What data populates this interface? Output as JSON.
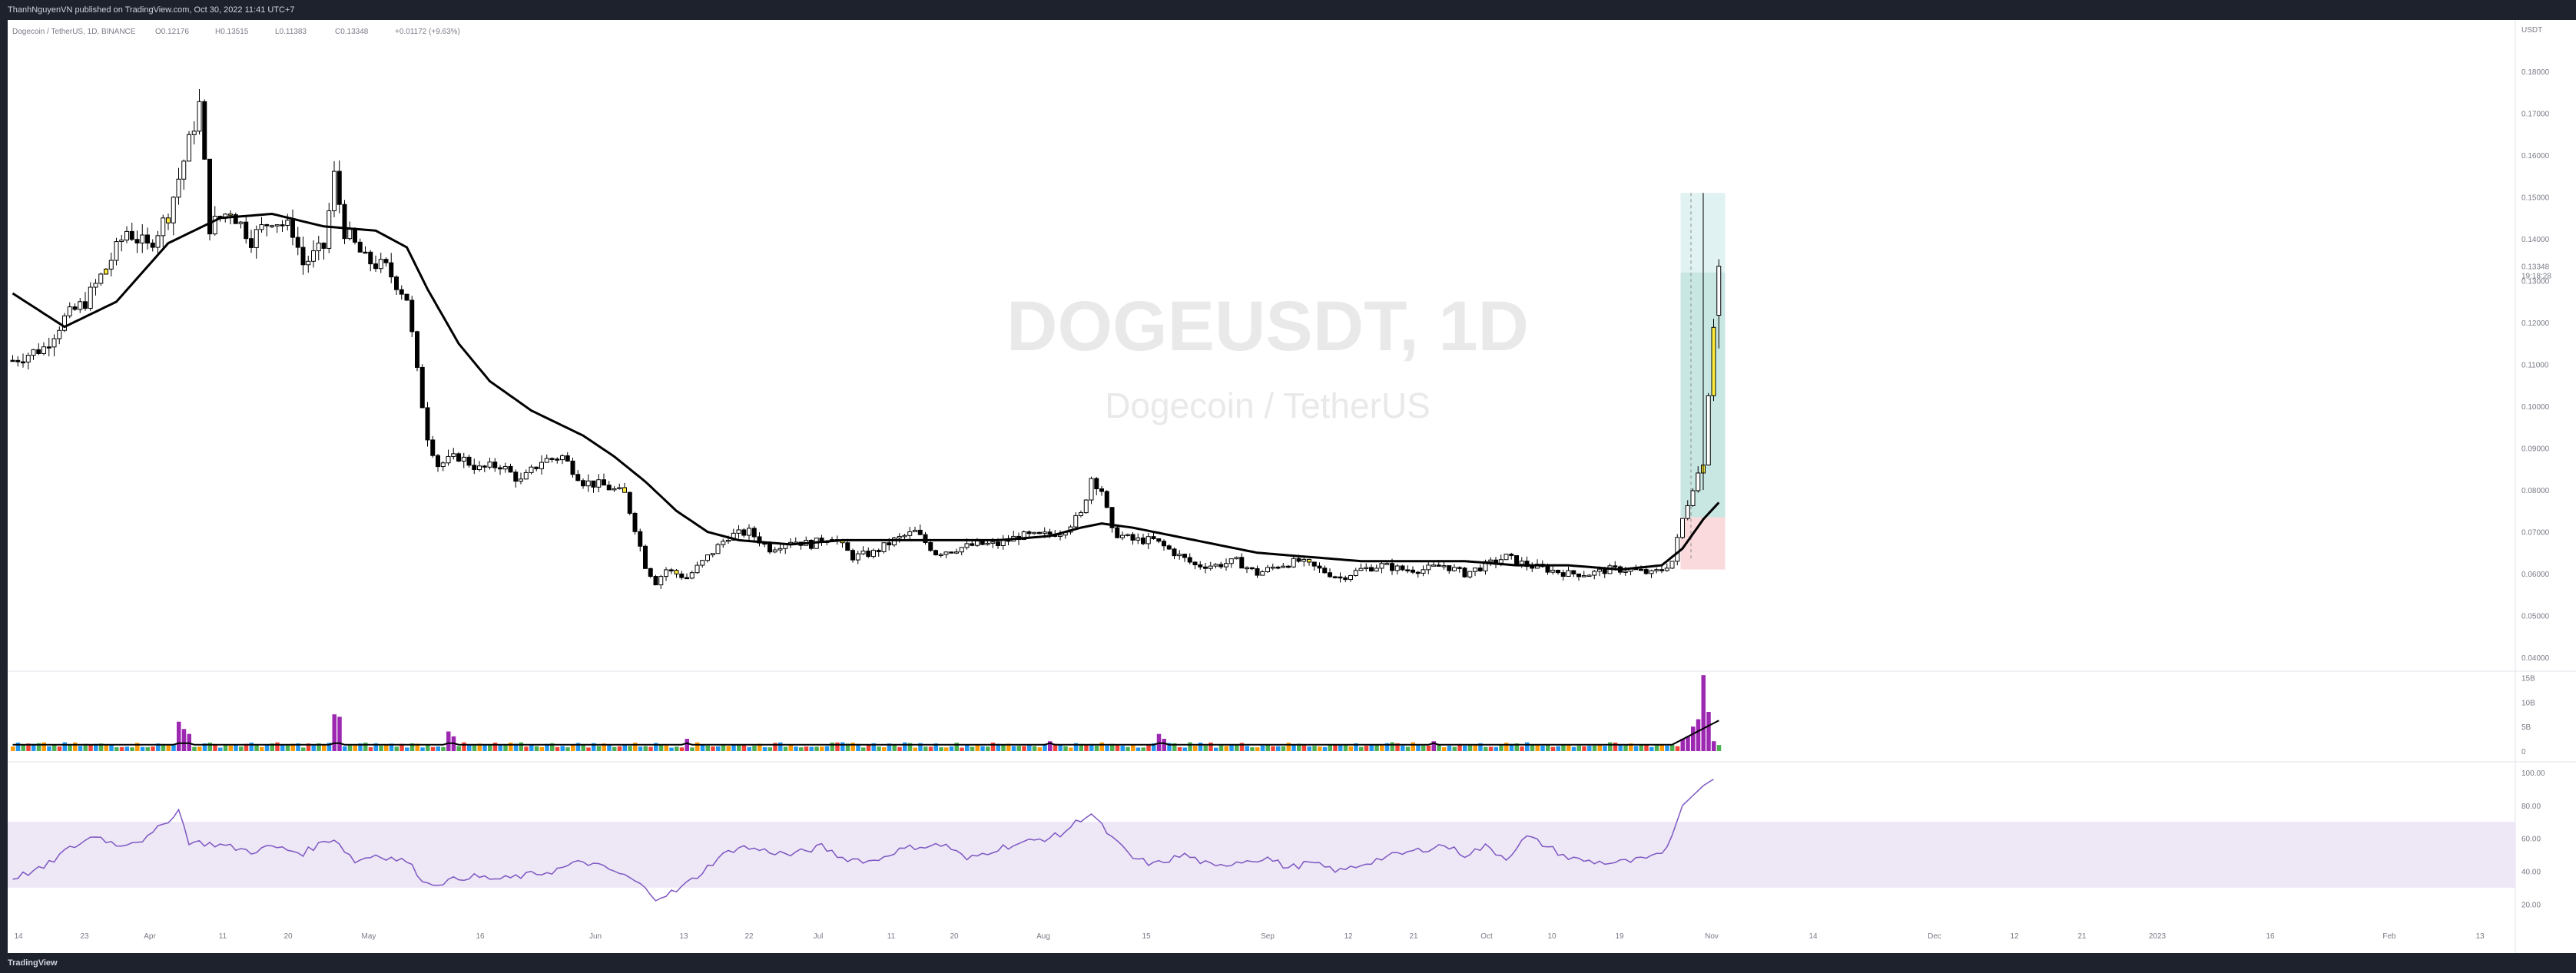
{
  "header": {
    "publish_line": "ThanhNguyenVN published on TradingView.com, Oct 30, 2022 11:41 UTC+7"
  },
  "footer": {
    "logo_text": "TradingView"
  },
  "legend": {
    "symbol": "Dogecoin / TetherUS, 1D, BINANCE",
    "open": "O0.12176",
    "high": "H0.13515",
    "low": "L0.11383",
    "close": "C0.13348",
    "change": "+0.01172 (+9.63%)"
  },
  "watermark": {
    "ticker": "DOGEUSDT, 1D",
    "name": "Dogecoin / TetherUS"
  },
  "colors": {
    "up": "#ffffff",
    "down": "#000000",
    "highlight": "#ffeb3b",
    "ma": "#000000",
    "rsi": "#7e57c2",
    "rsi_band": "#ede7f6",
    "target": "#c8e6e2",
    "target_light": "#e0f2f1",
    "stop": "#fadadd"
  },
  "chart_data": [
    {
      "type": "candlestick",
      "title": "DOGEUSDT, 1D",
      "price_axis_unit": "USDT",
      "y_ticks": [
        "0.18000",
        "0.17000",
        "0.16000",
        "0.15000",
        "0.14000",
        "0.13000",
        "0.12000",
        "0.11000",
        "0.10000",
        "0.09000",
        "0.08000",
        "0.07000",
        "0.06000",
        "0.05000",
        "0.04000"
      ],
      "ylim": [
        0.04,
        0.185
      ],
      "x_ticks": [
        "14",
        "23",
        "Apr",
        "11",
        "20",
        "May",
        "16",
        "Jun",
        "13",
        "22",
        "Jul",
        "11",
        "20",
        "Aug",
        "15",
        "Sep",
        "12",
        "21",
        "Oct",
        "10",
        "19",
        "Nov",
        "14",
        "Dec",
        "12",
        "21",
        "2023",
        "16",
        "Feb",
        "13"
      ],
      "last_price": "0.13348",
      "countdown": "19:18:28",
      "price_path": [
        [
          0,
          0.111
        ],
        [
          6,
          0.114
        ],
        [
          10,
          0.121
        ],
        [
          14,
          0.125
        ],
        [
          18,
          0.133
        ],
        [
          22,
          0.142
        ],
        [
          26,
          0.138
        ],
        [
          30,
          0.146
        ],
        [
          34,
          0.163
        ],
        [
          36,
          0.172
        ],
        [
          38,
          0.143
        ],
        [
          42,
          0.147
        ],
        [
          46,
          0.14
        ],
        [
          50,
          0.145
        ],
        [
          54,
          0.142
        ],
        [
          56,
          0.134
        ],
        [
          60,
          0.138
        ],
        [
          62,
          0.155
        ],
        [
          64,
          0.142
        ],
        [
          68,
          0.135
        ],
        [
          72,
          0.133
        ],
        [
          76,
          0.126
        ],
        [
          78,
          0.108
        ],
        [
          80,
          0.093
        ],
        [
          82,
          0.086
        ],
        [
          86,
          0.088
        ],
        [
          90,
          0.085
        ],
        [
          94,
          0.086
        ],
        [
          98,
          0.082
        ],
        [
          102,
          0.087
        ],
        [
          106,
          0.088
        ],
        [
          110,
          0.082
        ],
        [
          114,
          0.081
        ],
        [
          118,
          0.079
        ],
        [
          120,
          0.071
        ],
        [
          122,
          0.062
        ],
        [
          124,
          0.058
        ],
        [
          126,
          0.061
        ],
        [
          130,
          0.059
        ],
        [
          134,
          0.064
        ],
        [
          138,
          0.069
        ],
        [
          142,
          0.07
        ],
        [
          146,
          0.066
        ],
        [
          150,
          0.068
        ],
        [
          154,
          0.067
        ],
        [
          158,
          0.069
        ],
        [
          162,
          0.064
        ],
        [
          166,
          0.065
        ],
        [
          170,
          0.068
        ],
        [
          174,
          0.07
        ],
        [
          178,
          0.065
        ],
        [
          182,
          0.066
        ],
        [
          186,
          0.067
        ],
        [
          190,
          0.067
        ],
        [
          194,
          0.069
        ],
        [
          198,
          0.069
        ],
        [
          202,
          0.07
        ],
        [
          206,
          0.074
        ],
        [
          208,
          0.083
        ],
        [
          210,
          0.08
        ],
        [
          212,
          0.07
        ],
        [
          216,
          0.068
        ],
        [
          220,
          0.068
        ],
        [
          224,
          0.065
        ],
        [
          228,
          0.062
        ],
        [
          232,
          0.062
        ],
        [
          236,
          0.063
        ],
        [
          240,
          0.06
        ],
        [
          244,
          0.062
        ],
        [
          248,
          0.063
        ],
        [
          252,
          0.061
        ],
        [
          256,
          0.059
        ],
        [
          260,
          0.061
        ],
        [
          264,
          0.062
        ],
        [
          268,
          0.061
        ],
        [
          272,
          0.061
        ],
        [
          276,
          0.062
        ],
        [
          280,
          0.06
        ],
        [
          284,
          0.062
        ],
        [
          288,
          0.064
        ],
        [
          292,
          0.062
        ],
        [
          296,
          0.061
        ],
        [
          300,
          0.06
        ],
        [
          304,
          0.06
        ],
        [
          308,
          0.061
        ],
        [
          312,
          0.061
        ],
        [
          316,
          0.06
        ],
        [
          318,
          0.061
        ],
        [
          320,
          0.063
        ],
        [
          322,
          0.073
        ],
        [
          324,
          0.081
        ],
        [
          326,
          0.087
        ],
        [
          328,
          0.12
        ],
        [
          329,
          0.1335
        ]
      ],
      "moving_average": [
        [
          0,
          0.127
        ],
        [
          10,
          0.119
        ],
        [
          20,
          0.125
        ],
        [
          30,
          0.139
        ],
        [
          40,
          0.145
        ],
        [
          50,
          0.146
        ],
        [
          60,
          0.143
        ],
        [
          70,
          0.142
        ],
        [
          76,
          0.138
        ],
        [
          80,
          0.128
        ],
        [
          86,
          0.115
        ],
        [
          92,
          0.106
        ],
        [
          100,
          0.099
        ],
        [
          110,
          0.093
        ],
        [
          116,
          0.088
        ],
        [
          122,
          0.082
        ],
        [
          128,
          0.075
        ],
        [
          134,
          0.07
        ],
        [
          140,
          0.068
        ],
        [
          150,
          0.067
        ],
        [
          160,
          0.068
        ],
        [
          170,
          0.068
        ],
        [
          180,
          0.068
        ],
        [
          190,
          0.068
        ],
        [
          200,
          0.069
        ],
        [
          206,
          0.071
        ],
        [
          210,
          0.072
        ],
        [
          216,
          0.071
        ],
        [
          224,
          0.069
        ],
        [
          232,
          0.067
        ],
        [
          240,
          0.065
        ],
        [
          250,
          0.064
        ],
        [
          260,
          0.063
        ],
        [
          270,
          0.063
        ],
        [
          280,
          0.063
        ],
        [
          290,
          0.062
        ],
        [
          300,
          0.062
        ],
        [
          310,
          0.061
        ],
        [
          318,
          0.062
        ],
        [
          322,
          0.066
        ],
        [
          326,
          0.073
        ],
        [
          329,
          0.077
        ]
      ],
      "highlighted_candles": [
        18,
        30,
        42,
        118,
        128,
        160,
        250,
        326,
        328
      ],
      "position_tool": {
        "entry": 0.0735,
        "target_mid": 0.132,
        "target_top": 0.151,
        "stop": 0.061,
        "x_start": 322,
        "x_end": 330
      }
    },
    {
      "type": "bar",
      "title": "Volume",
      "y_ticks": [
        "15B",
        "10B",
        "5B",
        "0"
      ],
      "ylim": [
        0,
        16
      ],
      "spikes": [
        [
          32,
          6
        ],
        [
          33,
          4.5
        ],
        [
          34,
          3.5
        ],
        [
          62,
          7.5
        ],
        [
          63,
          7
        ],
        [
          84,
          4
        ],
        [
          85,
          3
        ],
        [
          130,
          2.5
        ],
        [
          200,
          2
        ],
        [
          221,
          3.5
        ],
        [
          222,
          2.5
        ],
        [
          274,
          2
        ],
        [
          322,
          2.5
        ],
        [
          323,
          3
        ],
        [
          324,
          5
        ],
        [
          325,
          6.5
        ],
        [
          326,
          15.5
        ],
        [
          327,
          8
        ],
        [
          328,
          2
        ]
      ]
    },
    {
      "type": "line",
      "title": "RSI",
      "y_ticks": [
        "100.00",
        "80.00",
        "60.00",
        "40.00",
        "20.00"
      ],
      "ylim": [
        15,
        100
      ],
      "band": [
        30,
        70
      ],
      "values": [
        [
          0,
          36
        ],
        [
          6,
          42
        ],
        [
          10,
          52
        ],
        [
          16,
          62
        ],
        [
          20,
          56
        ],
        [
          26,
          60
        ],
        [
          32,
          77
        ],
        [
          34,
          58
        ],
        [
          40,
          56
        ],
        [
          46,
          52
        ],
        [
          50,
          55
        ],
        [
          56,
          51
        ],
        [
          60,
          58
        ],
        [
          62,
          60
        ],
        [
          66,
          46
        ],
        [
          70,
          50
        ],
        [
          76,
          46
        ],
        [
          80,
          32
        ],
        [
          84,
          34
        ],
        [
          88,
          37
        ],
        [
          94,
          35
        ],
        [
          100,
          38
        ],
        [
          104,
          40
        ],
        [
          110,
          46
        ],
        [
          116,
          40
        ],
        [
          120,
          34
        ],
        [
          124,
          24
        ],
        [
          128,
          28
        ],
        [
          132,
          37
        ],
        [
          136,
          48
        ],
        [
          140,
          55
        ],
        [
          146,
          52
        ],
        [
          150,
          50
        ],
        [
          156,
          55
        ],
        [
          160,
          48
        ],
        [
          166,
          46
        ],
        [
          170,
          52
        ],
        [
          174,
          55
        ],
        [
          180,
          56
        ],
        [
          184,
          47
        ],
        [
          190,
          54
        ],
        [
          196,
          58
        ],
        [
          202,
          62
        ],
        [
          206,
          72
        ],
        [
          208,
          75
        ],
        [
          212,
          60
        ],
        [
          216,
          48
        ],
        [
          220,
          44
        ],
        [
          226,
          50
        ],
        [
          232,
          42
        ],
        [
          236,
          46
        ],
        [
          242,
          48
        ],
        [
          246,
          42
        ],
        [
          250,
          45
        ],
        [
          256,
          40
        ],
        [
          260,
          44
        ],
        [
          264,
          48
        ],
        [
          270,
          52
        ],
        [
          276,
          56
        ],
        [
          280,
          50
        ],
        [
          284,
          55
        ],
        [
          288,
          48
        ],
        [
          292,
          61
        ],
        [
          296,
          55
        ],
        [
          300,
          48
        ],
        [
          304,
          46
        ],
        [
          308,
          45
        ],
        [
          312,
          46
        ],
        [
          316,
          48
        ],
        [
          318,
          50
        ],
        [
          320,
          62
        ],
        [
          322,
          80
        ],
        [
          324,
          86
        ],
        [
          326,
          92
        ],
        [
          328,
          96
        ]
      ]
    }
  ]
}
